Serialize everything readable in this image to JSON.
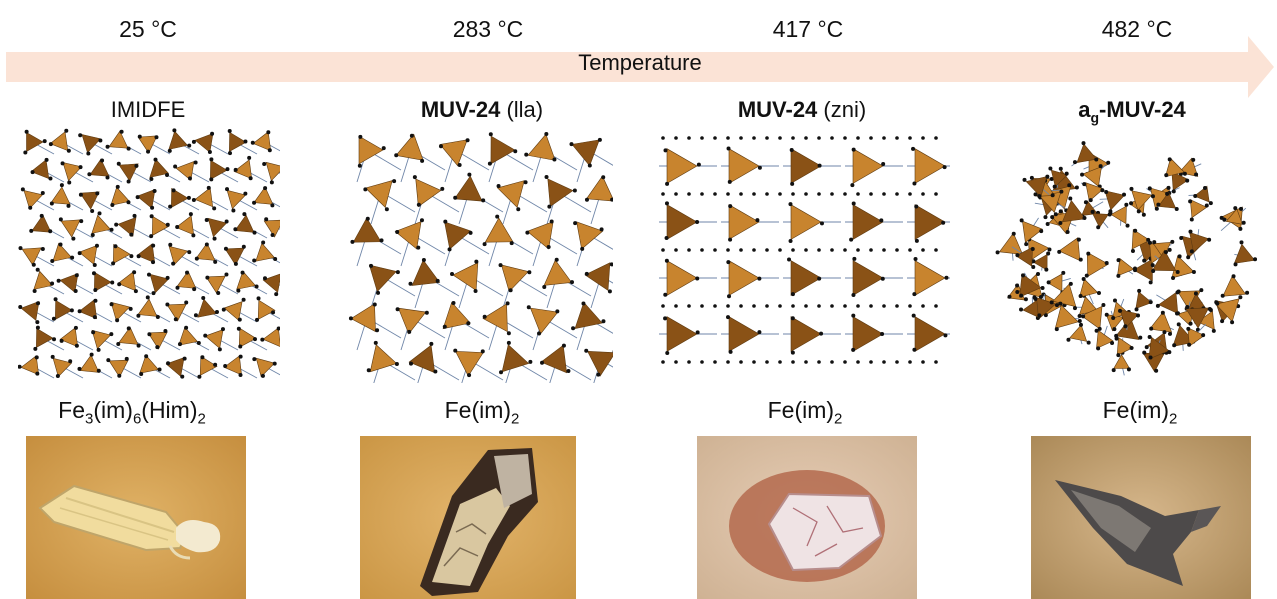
{
  "temperatures": [
    "25 °C",
    "283 °C",
    "417 °C",
    "482 °C"
  ],
  "arrow": {
    "label": "Temperature",
    "color": "#fbe3d6"
  },
  "phases": [
    {
      "name_plain": "IMIDFE"
    },
    {
      "name_bold": "MUV-24",
      "name_suffix": " (lla)"
    },
    {
      "name_bold": "MUV-24",
      "name_suffix": " (zni)"
    },
    {
      "name_prefix": "a",
      "name_prefix_sub": "g",
      "name_bold": "-MUV-24"
    }
  ],
  "formulas": [
    {
      "parts": [
        "Fe",
        "3",
        "(im)",
        "6",
        "(Him)",
        "2"
      ]
    },
    {
      "parts": [
        "Fe(im)",
        "2"
      ]
    },
    {
      "parts": [
        "Fe(im)",
        "2"
      ]
    },
    {
      "parts": [
        "Fe(im)",
        "2"
      ]
    }
  ],
  "colors": {
    "tetrahedron": "#c8842e",
    "tetrahedron_dark": "#8a5216",
    "atom": "#111111",
    "bond": "#6f86a8",
    "photo_backgrounds": [
      "#d6a152",
      "#d7a35a",
      "#d9bfa6",
      "#c2a176"
    ]
  }
}
